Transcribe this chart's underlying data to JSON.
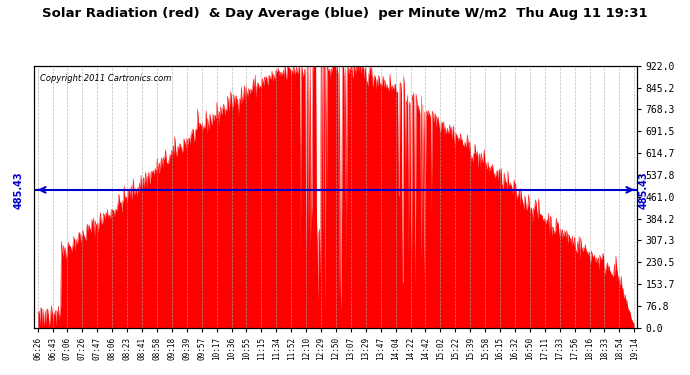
{
  "title": "Solar Radiation (red)  & Day Average (blue)  per Minute W/m2  Thu Aug 11 19:31",
  "copyright_text": "Copyright 2011 Cartronics.com",
  "y_max": 922.0,
  "y_min": 0.0,
  "day_average": 485.43,
  "y_ticks": [
    0.0,
    76.8,
    153.7,
    230.5,
    307.3,
    384.2,
    461.0,
    537.8,
    614.7,
    691.5,
    768.3,
    845.2,
    922.0
  ],
  "bar_color": "#FF0000",
  "avg_line_color": "#0000CC",
  "background_color": "#FFFFFF",
  "grid_color": "#AAAAAA",
  "x_tick_labels": [
    "06:26",
    "06:43",
    "07:06",
    "07:26",
    "07:47",
    "08:06",
    "08:23",
    "08:41",
    "08:58",
    "09:18",
    "09:39",
    "09:57",
    "10:17",
    "10:36",
    "10:55",
    "11:15",
    "11:34",
    "11:52",
    "12:10",
    "12:29",
    "12:50",
    "13:07",
    "13:29",
    "13:47",
    "14:04",
    "14:22",
    "14:42",
    "15:02",
    "15:22",
    "15:39",
    "15:58",
    "16:15",
    "16:32",
    "16:50",
    "17:11",
    "17:33",
    "17:56",
    "18:16",
    "18:33",
    "18:54",
    "19:14"
  ],
  "solar_data_seed": 42,
  "n_points": 780
}
